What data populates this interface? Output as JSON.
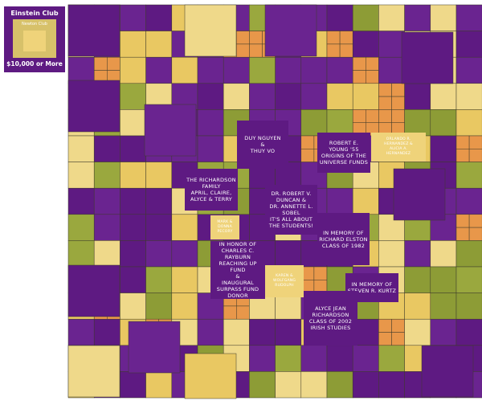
{
  "legend": {
    "title": "Einstein Club",
    "subtitle": "Newton Club",
    "amount": "$10,000 or More"
  },
  "tiles": [
    {
      "lines": [
        "DUY NGUYEN",
        "&",
        "THUY VO"
      ]
    },
    {
      "lines": [
        "ROBERT E. YOUNG '55",
        "ORIGINS OF THE",
        "UNIVERSE FUNDS"
      ]
    },
    {
      "lines": [
        "THE RICHARDSON",
        "FAMILY",
        "APRIL, CLAIRE,",
        "ALYCE & TERRY"
      ]
    },
    {
      "lines": [
        "DR. ROBERT V.",
        "DUNCAN &",
        "DR. ANNETTE L.",
        "SOBEL",
        "IT'S ALL ABOUT",
        "THE STUDENTS!"
      ]
    },
    {
      "lines": [
        "IN MEMORY OF",
        "RICHARD ELSTON",
        "CLASS OF 1982"
      ]
    },
    {
      "lines": [
        "IN HONOR OF",
        "CHARLES C.",
        "RAYBURN",
        "REACHING UP",
        "FUND",
        "&",
        "INAUGURAL",
        "SURPASS FUND",
        "DONOR"
      ]
    },
    {
      "lines": [
        "IN MEMORY OF",
        "STEVEN R. KURTZ"
      ]
    },
    {
      "lines": [
        "ALYCE JEAN",
        "RICHARDSON",
        "CLASS OF 2002",
        "IRISH STUDIES"
      ]
    },
    {
      "lines": [
        "MARK & DONNA",
        "PECORY"
      ]
    },
    {
      "lines": [
        "KAREN &",
        "WOLFGANG",
        "RUDOLPH"
      ]
    },
    {
      "lines": [
        "ORLANDO R.",
        "HERNANDEZ &",
        "ALICIA A.",
        "HERNANDEZ"
      ]
    }
  ]
}
